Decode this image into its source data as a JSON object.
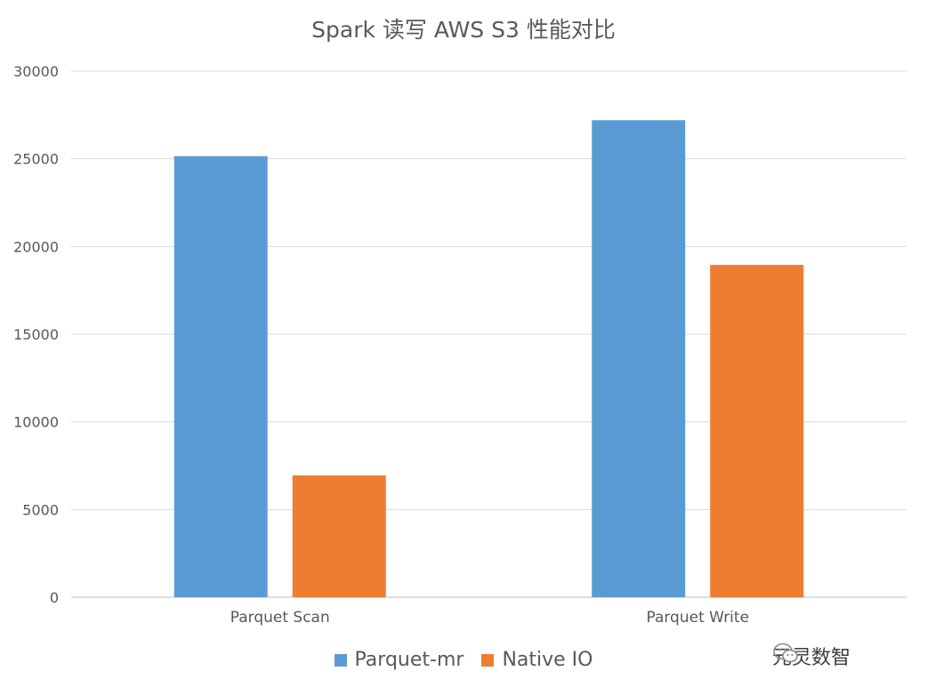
{
  "colors": {
    "parquet_mr": "#5b9bd5",
    "native_io": "#ed7d31",
    "grid": "#d9d9d9",
    "text": "#595959"
  },
  "watermark": {
    "text": "元灵数智",
    "icon": "wechat-logo-icon"
  },
  "chart_data": {
    "type": "bar",
    "title": "Spark 读写 AWS S3 性能对比",
    "xlabel": "",
    "ylabel": "",
    "categories": [
      "Parquet Scan",
      "Parquet Write"
    ],
    "series": [
      {
        "name": "Parquet-mr",
        "color": "#5b9bd5",
        "values": [
          25150,
          27200
        ]
      },
      {
        "name": "Native IO",
        "color": "#ed7d31",
        "values": [
          6950,
          18950
        ]
      }
    ],
    "ylim": [
      0,
      30000
    ],
    "yticks": [
      "0",
      "5000",
      "10000",
      "15000",
      "20000",
      "25000",
      "30000"
    ],
    "grid": true,
    "legend_position": "bottom"
  }
}
